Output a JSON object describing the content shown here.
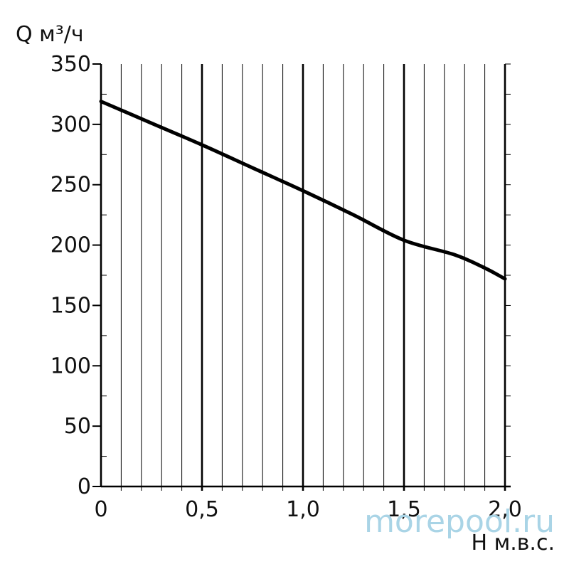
{
  "chart_data": {
    "type": "line",
    "ylabel": "Q м³/ч",
    "xlabel": "H м.в.с.",
    "xlim": [
      0,
      2.0
    ],
    "ylim": [
      0,
      350
    ],
    "x_ticks": [
      0,
      0.5,
      1.0,
      1.5,
      2.0
    ],
    "x_tick_labels": [
      "0",
      "0,5",
      "1,0",
      "1,5",
      "2,0"
    ],
    "y_ticks": [
      0,
      50,
      100,
      150,
      200,
      250,
      300,
      350
    ],
    "y_tick_labels": [
      "0",
      "50",
      "100",
      "150",
      "200",
      "250",
      "300",
      "350"
    ],
    "grid": true,
    "series": [
      {
        "x": [
          0,
          0.25,
          0.5,
          0.75,
          1.0,
          1.25,
          1.5,
          1.75,
          1.9,
          2.0
        ],
        "y": [
          319,
          301,
          283,
          264,
          245,
          225,
          204,
          192,
          181,
          172
        ]
      }
    ],
    "colors": {
      "line": "#000000",
      "grid": "#000000",
      "watermark": "#a9d4e6"
    }
  },
  "watermark": "morepool.ru"
}
